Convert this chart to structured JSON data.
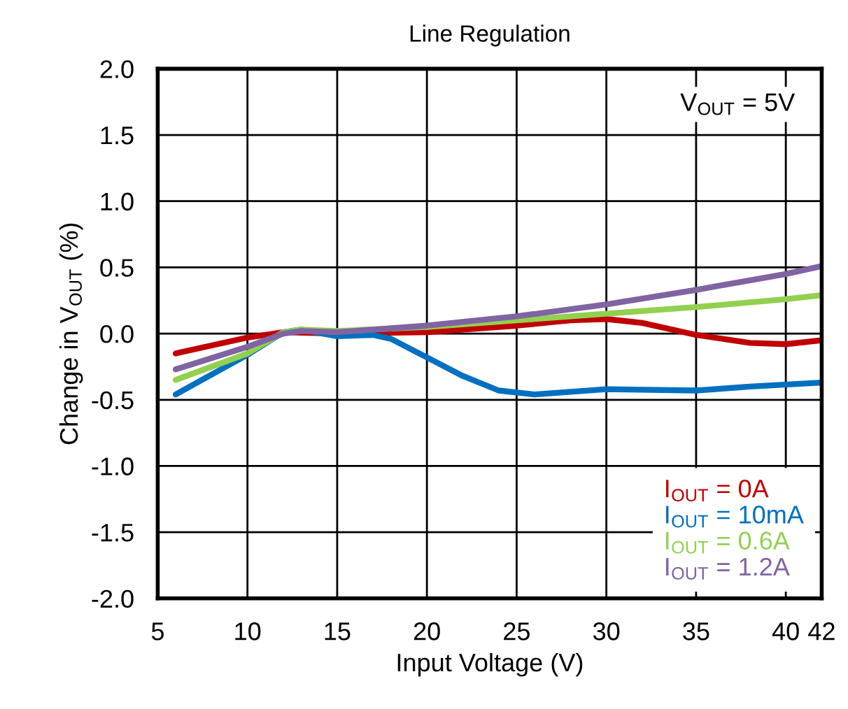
{
  "chart_data": {
    "type": "line",
    "title": "Line Regulation",
    "xlabel": "Input Voltage (V)",
    "ylabel": "Change in V$_{OUT}$ (%)",
    "annotations": [
      "V$_{OUT}$ = 5V"
    ],
    "xlim": [
      5,
      42
    ],
    "xticks": [
      5,
      10,
      15,
      20,
      25,
      30,
      35,
      40,
      42
    ],
    "ylim": [
      -2.0,
      2.0
    ],
    "yticks": [
      {
        "value": -2,
        "label": "-2.0"
      },
      {
        "value": -1.5,
        "label": "-1.5"
      },
      {
        "value": -1,
        "label": "-1.0"
      },
      {
        "value": -0.5,
        "label": "-0.5"
      },
      {
        "value": 0,
        "label": "0.0"
      },
      {
        "value": 0.5,
        "label": "0.5"
      },
      {
        "value": 1,
        "label": "1.0"
      },
      {
        "value": 1.5,
        "label": "1.5"
      },
      {
        "value": 2,
        "label": "2.0"
      }
    ],
    "grid": true,
    "legend": "bottom right",
    "marker": "none",
    "line_style": "solid",
    "series": [
      {
        "name": "I$_{OUT}$ = 0A",
        "color": "#c00000",
        "x": [
          6,
          10,
          12,
          15,
          20,
          25,
          28,
          30,
          32,
          35,
          38,
          40,
          42
        ],
        "values": [
          -0.15,
          -0.03,
          0.01,
          0,
          0.01,
          0.06,
          0.1,
          0.11,
          0.08,
          -0.01,
          -0.07,
          -0.08,
          -0.05
        ]
      },
      {
        "name": "I$_{OUT}$ = 10mA",
        "color": "#0070c0",
        "x": [
          6,
          10,
          12,
          13,
          15,
          17,
          18,
          20,
          22,
          24,
          26,
          30,
          35,
          38,
          42
        ],
        "values": [
          -0.46,
          -0.16,
          0.01,
          0.03,
          -0.02,
          -0.01,
          -0.04,
          -0.18,
          -0.32,
          -0.43,
          -0.46,
          -0.42,
          -0.43,
          -0.4,
          -0.37
        ]
      },
      {
        "name": "I$_{OUT}$ = 0.6A",
        "color": "#92d050",
        "x": [
          6,
          10,
          12,
          13,
          15,
          20,
          25,
          30,
          35,
          40,
          42
        ],
        "values": [
          -0.35,
          -0.15,
          0.01,
          0.03,
          0.02,
          0.05,
          0.1,
          0.15,
          0.2,
          0.26,
          0.29
        ]
      },
      {
        "name": "I$_{OUT}$ = 1.2A",
        "color": "#8064a2",
        "x": [
          6,
          10,
          12,
          13,
          15,
          20,
          25,
          30,
          35,
          40,
          42
        ],
        "values": [
          -0.27,
          -0.1,
          0,
          0.02,
          0.01,
          0.06,
          0.13,
          0.22,
          0.33,
          0.45,
          0.51
        ]
      }
    ]
  }
}
